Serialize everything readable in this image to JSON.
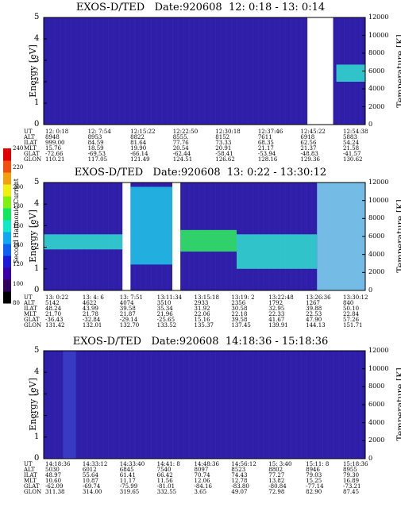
{
  "colorbar": {
    "label": "Second Harmonic Current",
    "ticks": [
      "240",
      "220",
      "200",
      "180",
      "160",
      "140",
      "120",
      "100",
      "80"
    ],
    "colors": [
      "#000000",
      "#30005a",
      "#3a00a8",
      "#1a1ad8",
      "#1060f0",
      "#10a8f0",
      "#10e8c8",
      "#10e860",
      "#80f010",
      "#f0f010",
      "#f0a010",
      "#f05010",
      "#e00000"
    ]
  },
  "chart_data": [
    {
      "type": "heatmap",
      "title": "EXOS-D/TED   Date:920608  12: 0:18 - 13: 0:14",
      "ylabel": "Energy [eV]",
      "y2label": "Temperature [K]",
      "ylim": [
        0,
        5
      ],
      "y2lim": [
        0,
        12000
      ],
      "yticks": [
        "0",
        "1",
        "2",
        "3",
        "4",
        "5"
      ],
      "y2ticks": [
        "0",
        "2000",
        "4000",
        "6000",
        "8000",
        "10000",
        "12000"
      ],
      "data_gaps": [
        [
          0.82,
          0.9
        ]
      ],
      "bands": [
        {
          "x_from": 0.91,
          "x_to": 1.0,
          "energy_low": 2.0,
          "energy_high": 2.8,
          "color": "#30e0d0"
        }
      ],
      "background": "#2e1ea8",
      "table": {
        "labels": [
          "UT",
          "ALT",
          "ILAT",
          "MLT",
          "GLAT",
          "GLON"
        ],
        "columns": [
          [
            "12: 0:18",
            "8948",
            "999.00",
            "15.76",
            "-72.66",
            "110.21"
          ],
          [
            "12: 7:54",
            "8953",
            "84.59",
            "18.59",
            "-69.53",
            "117.05"
          ],
          [
            "12:15:22",
            "8822",
            "81.64",
            "19.90",
            "-66.14",
            "121.49"
          ],
          [
            "12:22:50",
            "8555.",
            "77.76",
            "20.54",
            "-62.44",
            "124.51"
          ],
          [
            "12:30:18",
            "8152",
            "73.33",
            "20.91",
            "-58.41",
            "126.62"
          ],
          [
            "12:37:46",
            "7611",
            "68.35",
            "21.17",
            "-53.94",
            "128.16"
          ],
          [
            "12:45:22",
            "6918",
            "62.56",
            "21.37",
            "-48.83",
            "129.36"
          ],
          [
            "12:54:38",
            "5883",
            "54.24",
            "21.58",
            "-41.57",
            "130.62"
          ]
        ]
      }
    },
    {
      "type": "heatmap",
      "title": "EXOS-D/TED   Date:920608  13: 0:22 - 13:30:12",
      "ylabel": "Energy [eV]",
      "y2label": "Temperature [K]",
      "ylim": [
        0,
        5
      ],
      "y2lim": [
        0,
        12000
      ],
      "yticks": [
        "0",
        "1",
        "2",
        "3",
        "4",
        "5"
      ],
      "y2ticks": [
        "0",
        "2000",
        "4000",
        "6000",
        "8000",
        "10000",
        "12000"
      ],
      "data_gaps": [
        [
          0.245,
          0.27
        ],
        [
          0.4,
          0.425
        ]
      ],
      "bands": [
        {
          "x_from": 0.0,
          "x_to": 0.245,
          "energy_low": 1.9,
          "energy_high": 2.6,
          "color": "#30e0d0"
        },
        {
          "x_from": 0.27,
          "x_to": 0.4,
          "energy_low": 1.2,
          "energy_high": 4.8,
          "color": "#20c8e8"
        },
        {
          "x_from": 0.425,
          "x_to": 0.6,
          "energy_low": 1.8,
          "energy_high": 2.8,
          "color": "#30f060"
        },
        {
          "x_from": 0.6,
          "x_to": 0.85,
          "energy_low": 1.0,
          "energy_high": 2.6,
          "color": "#30e0d0"
        },
        {
          "x_from": 0.85,
          "x_to": 1.0,
          "energy_low": 0.0,
          "energy_high": 5.0,
          "color": "#80d8f0"
        }
      ],
      "background": "#2e1ea8",
      "table": {
        "labels": [
          "UT",
          "ALT",
          "ILAT",
          "MLT",
          "GLAT",
          "GLON"
        ],
        "columns": [
          [
            "13: 0:22",
            "5142",
            "48.24",
            "21.70",
            "-36.43",
            "131.42"
          ],
          [
            "13: 4: 6",
            "4622",
            "43.99",
            "21.78",
            "-32.84",
            "132.01"
          ],
          [
            "13: 7:51",
            "4074",
            "39.58",
            "21.87",
            "-29.14",
            "132.70"
          ],
          [
            "13:11:34",
            "3510",
            "35.34",
            "21.96",
            "-25.65",
            "133.52"
          ],
          [
            "13:15:18",
            "2933",
            "31.92",
            "22.06",
            "15.16",
            "135.37"
          ],
          [
            "13:19: 2",
            "2356",
            "30.58",
            "22.18",
            "39.58",
            "137.45"
          ],
          [
            "13:22:48",
            "1792",
            "32.95",
            "22.33",
            "41.67",
            "139.91"
          ],
          [
            "13:26:36",
            "1267",
            "39.88",
            "22.53",
            "47.90",
            "144.13"
          ],
          [
            "13:30:12",
            "840",
            "50.10",
            "22.84",
            "57.26",
            "151.71"
          ]
        ]
      }
    },
    {
      "type": "heatmap",
      "title": "EXOS-D/TED   Date:920608  14:18:36 - 15:18:36",
      "ylabel": "Energy [eV]",
      "y2label": "Temperature [K]",
      "ylim": [
        0,
        5
      ],
      "y2lim": [
        0,
        12000
      ],
      "yticks": [
        "0",
        "1",
        "2",
        "3",
        "4",
        "5"
      ],
      "y2ticks": [
        "0",
        "2000",
        "4000",
        "6000",
        "8000",
        "10000",
        "12000"
      ],
      "data_gaps": [],
      "bands": [
        {
          "x_from": 0.06,
          "x_to": 0.1,
          "energy_low": 0.0,
          "energy_high": 5.0,
          "color": "#3a40c8"
        }
      ],
      "background": "#2e1ea8",
      "table": {
        "labels": [
          "UT",
          "ALT",
          "ILAT",
          "MLT",
          "GLAT",
          "GLON"
        ],
        "columns": [
          [
            "14:18:36",
            "5030",
            "48.97",
            "10.60",
            "-62.09",
            "311.38"
          ],
          [
            "14:33:12",
            "6012",
            "55.64",
            "10.87",
            "-69.74",
            "314.00"
          ],
          [
            "14:33:40",
            "6845",
            "61.41",
            "11.17",
            "-75.99",
            "319.65"
          ],
          [
            "14:41: 8",
            "7540",
            "66.42",
            "11.56",
            "-81.01",
            "332.55"
          ],
          [
            "14:48:36",
            "8097",
            "70.74",
            "12.06",
            "-84.16",
            "3.65"
          ],
          [
            "14:56:12",
            "8523",
            "74.43",
            "12.78",
            "-83.80",
            "49.07"
          ],
          [
            "15: 3:40",
            "8802",
            "77.27",
            "13.82",
            "-80.84",
            "72.98"
          ],
          [
            "15:11: 8",
            "8946",
            "79.03",
            "15.25",
            "-77.14",
            "82.90"
          ],
          [
            "15:18:36",
            "8955",
            "79.30",
            "16.89",
            "-73.21",
            "87.45"
          ]
        ]
      }
    }
  ]
}
